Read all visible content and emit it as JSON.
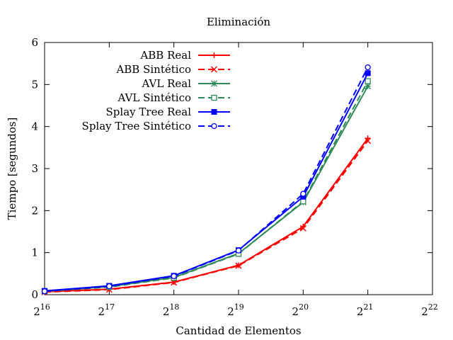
{
  "chart_data": {
    "type": "line",
    "title": "Eliminación",
    "xlabel": "Cantidad de Elementos",
    "ylabel": "Tiempo [segundos]",
    "x_scale": "log2",
    "x_tick_base": "2",
    "x_tick_exponents": [
      "16",
      "17",
      "18",
      "19",
      "20",
      "21",
      "22"
    ],
    "xlim": [
      65536,
      4194304
    ],
    "ylim": [
      0,
      6
    ],
    "y_ticks": [
      "0",
      "1",
      "2",
      "3",
      "4",
      "5",
      "6"
    ],
    "grid": false,
    "legend_position": "top-left",
    "x": [
      65536,
      131072,
      262144,
      524288,
      1048576,
      2097152
    ],
    "series": [
      {
        "name": "ABB Real",
        "color": "#ff0000",
        "dash": "solid",
        "marker": "plus",
        "values": [
          0.07,
          0.13,
          0.3,
          0.7,
          1.62,
          3.72
        ]
      },
      {
        "name": "ABB Sintético",
        "color": "#ff0000",
        "dash": "dashed",
        "marker": "cross",
        "values": [
          0.06,
          0.12,
          0.29,
          0.69,
          1.58,
          3.66
        ]
      },
      {
        "name": "AVL Real",
        "color": "#2e8b57",
        "dash": "solid",
        "marker": "star",
        "values": [
          0.08,
          0.19,
          0.41,
          0.98,
          2.2,
          4.96
        ]
      },
      {
        "name": "AVL Sintético",
        "color": "#2e8b57",
        "dash": "dashed",
        "marker": "square-open",
        "values": [
          0.08,
          0.18,
          0.4,
          0.97,
          2.22,
          5.08
        ]
      },
      {
        "name": "Splay Tree Real",
        "color": "#0000ff",
        "dash": "solid",
        "marker": "square-filled",
        "values": [
          0.09,
          0.21,
          0.45,
          1.06,
          2.33,
          5.27
        ]
      },
      {
        "name": "Splay Tree Sintético",
        "color": "#0000ff",
        "dash": "dashed",
        "marker": "circle-open",
        "values": [
          0.08,
          0.2,
          0.44,
          1.05,
          2.4,
          5.41
        ]
      }
    ]
  }
}
